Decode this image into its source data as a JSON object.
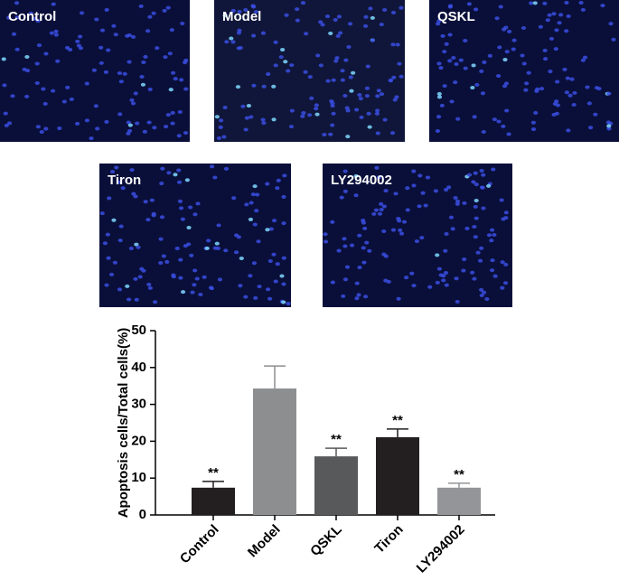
{
  "panels": [
    {
      "label": "Control"
    },
    {
      "label": "Model"
    },
    {
      "label": "QSKL"
    },
    {
      "label": "Tiron"
    },
    {
      "label": "LY294002"
    }
  ],
  "chart_data": {
    "type": "bar",
    "y_label": "Apoptosis cells/Total cells(%)",
    "categories": [
      "Control",
      "Model",
      "QSKL",
      "Tiron",
      "LY294002"
    ],
    "values": [
      7.4,
      34.3,
      15.9,
      21.1,
      7.4
    ],
    "errors": [
      1.7,
      6.1,
      2.2,
      2.2,
      1.2
    ],
    "annotations": [
      "**",
      null,
      "**",
      "**",
      "**"
    ],
    "colors": [
      "#231f20",
      "#8d8e90",
      "#58595b",
      "#231f20",
      "#939598"
    ],
    "ylim": [
      0,
      50
    ],
    "yticks": [
      0,
      10,
      20,
      30,
      40,
      50
    ],
    "grid": false
  }
}
